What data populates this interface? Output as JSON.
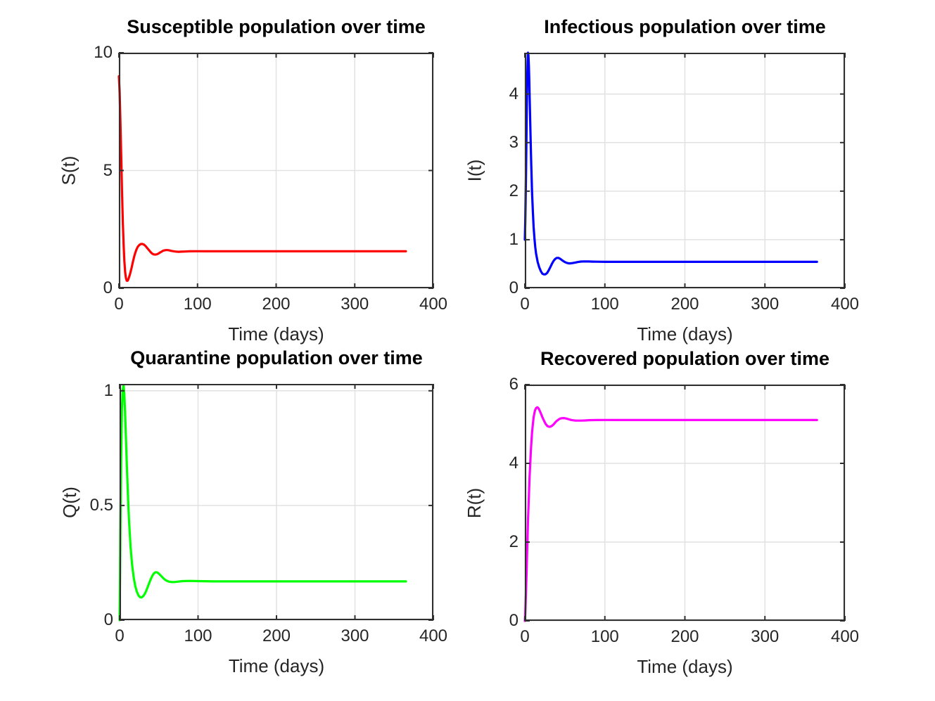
{
  "figure": {
    "background": "#ffffff"
  },
  "styles": {
    "title_color": "#000000",
    "tick_label_color": "#262626",
    "axis_color": "#2f2f2f",
    "grid_color": "#e2e2e2"
  },
  "chart_data": [
    {
      "id": "susceptible",
      "type": "line",
      "title": "Susceptible population over time",
      "xlabel": "Time (days)",
      "ylabel": "S(t)",
      "xlim": [
        0,
        400
      ],
      "ylim": [
        0,
        10
      ],
      "xticks": [
        0,
        100,
        200,
        300,
        400
      ],
      "yticks": [
        0,
        5,
        10
      ],
      "grid": true,
      "legend": "none",
      "series": [
        {
          "name": "S(t)",
          "color": "#FF0000",
          "x": [
            0,
            1,
            2,
            3,
            4,
            5,
            6,
            7,
            8,
            9,
            10,
            11,
            12,
            14,
            16,
            18,
            20,
            22,
            24,
            26,
            28,
            30,
            32,
            34,
            36,
            38,
            40,
            42,
            44,
            46,
            48,
            50,
            52,
            54,
            56,
            58,
            60,
            62,
            64,
            66,
            68,
            70,
            73,
            76,
            80,
            85,
            90,
            100,
            110,
            120,
            140,
            160,
            180,
            200,
            230,
            260,
            300,
            330,
            365
          ],
          "y": [
            9.0,
            8.3,
            7.0,
            5.5,
            4.0,
            2.8,
            1.85,
            1.15,
            0.68,
            0.42,
            0.32,
            0.32,
            0.38,
            0.58,
            0.85,
            1.15,
            1.42,
            1.62,
            1.76,
            1.84,
            1.88,
            1.88,
            1.85,
            1.79,
            1.71,
            1.63,
            1.55,
            1.48,
            1.44,
            1.43,
            1.44,
            1.47,
            1.51,
            1.55,
            1.59,
            1.61,
            1.62,
            1.62,
            1.61,
            1.59,
            1.58,
            1.57,
            1.555,
            1.55,
            1.555,
            1.56,
            1.57,
            1.572,
            1.57,
            1.57,
            1.57,
            1.57,
            1.57,
            1.57,
            1.57,
            1.57,
            1.57,
            1.57,
            1.57
          ]
        }
      ]
    },
    {
      "id": "infectious",
      "type": "line",
      "title": "Infectious population over time",
      "xlabel": "Time (days)",
      "ylabel": "I(t)",
      "xlim": [
        0,
        400
      ],
      "ylim": [
        0,
        4.85
      ],
      "xticks": [
        0,
        100,
        200,
        300,
        400
      ],
      "yticks": [
        0,
        1,
        2,
        3,
        4
      ],
      "grid": true,
      "legend": "none",
      "series": [
        {
          "name": "I(t)",
          "color": "#0000FF",
          "x": [
            0,
            0.5,
            1,
            1.5,
            2,
            2.5,
            3,
            3.5,
            4,
            4.5,
            5,
            5.5,
            6,
            7,
            8,
            9,
            10,
            11,
            12,
            13,
            14,
            16,
            18,
            20,
            22,
            24,
            26,
            28,
            30,
            32,
            34,
            36,
            38,
            40,
            42,
            44,
            46,
            48,
            50,
            52,
            54,
            56,
            58,
            60,
            63,
            66,
            70,
            75,
            80,
            85,
            90,
            100,
            120,
            150,
            200,
            250,
            300,
            365
          ],
          "y": [
            1.0,
            1.35,
            1.8,
            2.4,
            3.1,
            3.75,
            4.3,
            4.68,
            4.85,
            4.8,
            4.6,
            4.3,
            3.95,
            3.2,
            2.55,
            2.0,
            1.58,
            1.26,
            1.02,
            0.85,
            0.72,
            0.545,
            0.43,
            0.35,
            0.3,
            0.285,
            0.29,
            0.32,
            0.375,
            0.44,
            0.51,
            0.565,
            0.605,
            0.625,
            0.625,
            0.61,
            0.585,
            0.56,
            0.54,
            0.525,
            0.515,
            0.512,
            0.515,
            0.52,
            0.53,
            0.54,
            0.55,
            0.553,
            0.552,
            0.549,
            0.547,
            0.545,
            0.545,
            0.545,
            0.545,
            0.545,
            0.545,
            0.545
          ]
        }
      ]
    },
    {
      "id": "quarantine",
      "type": "line",
      "title": "Quarantine population over time",
      "xlabel": "Time (days)",
      "ylabel": "Q(t)",
      "xlim": [
        0,
        400
      ],
      "ylim": [
        0,
        1.03
      ],
      "xticks": [
        0,
        100,
        200,
        300,
        400
      ],
      "yticks": [
        0,
        0.5,
        1
      ],
      "grid": true,
      "legend": "none",
      "series": [
        {
          "name": "Q(t)",
          "color": "#00FF00",
          "x": [
            0,
            0.5,
            1,
            1.5,
            2,
            2.5,
            3,
            4,
            5,
            6,
            7,
            8,
            9,
            10,
            11,
            12,
            14,
            16,
            18,
            20,
            22,
            24,
            26,
            28,
            30,
            32,
            34,
            36,
            38,
            40,
            42,
            44,
            46,
            48,
            50,
            52,
            54,
            56,
            58,
            60,
            63,
            66,
            70,
            75,
            80,
            90,
            100,
            120,
            150,
            200,
            250,
            300,
            365
          ],
          "y": [
            0,
            0.18,
            0.38,
            0.57,
            0.72,
            0.84,
            0.92,
            1.005,
            1.025,
            0.985,
            0.905,
            0.805,
            0.7,
            0.6,
            0.51,
            0.435,
            0.32,
            0.24,
            0.185,
            0.148,
            0.124,
            0.108,
            0.1,
            0.099,
            0.104,
            0.114,
            0.128,
            0.146,
            0.164,
            0.181,
            0.195,
            0.205,
            0.209,
            0.208,
            0.203,
            0.196,
            0.189,
            0.182,
            0.176,
            0.172,
            0.168,
            0.166,
            0.166,
            0.168,
            0.17,
            0.171,
            0.17,
            0.169,
            0.169,
            0.169,
            0.169,
            0.169,
            0.169
          ]
        }
      ]
    },
    {
      "id": "recovered",
      "type": "line",
      "title": "Recovered population over time",
      "xlabel": "Time (days)",
      "ylabel": "R(t)",
      "xlim": [
        0,
        400
      ],
      "ylim": [
        0,
        6
      ],
      "xticks": [
        0,
        100,
        200,
        300,
        400
      ],
      "yticks": [
        0,
        2,
        4,
        6
      ],
      "grid": true,
      "legend": "none",
      "series": [
        {
          "name": "R(t)",
          "color": "#FF00FF",
          "x": [
            0,
            0.5,
            1,
            1.5,
            2,
            3,
            4,
            5,
            6,
            7,
            8,
            9,
            10,
            11,
            12,
            13,
            14,
            15,
            16,
            17,
            18,
            20,
            22,
            24,
            26,
            28,
            30,
            32,
            34,
            36,
            38,
            40,
            42,
            44,
            46,
            48,
            50,
            52,
            54,
            56,
            58,
            60,
            63,
            66,
            70,
            75,
            80,
            90,
            100,
            120,
            150,
            200,
            250,
            300,
            365
          ],
          "y": [
            0,
            0.18,
            0.45,
            0.78,
            1.12,
            1.85,
            2.55,
            3.15,
            3.68,
            4.12,
            4.48,
            4.77,
            5.0,
            5.17,
            5.29,
            5.36,
            5.4,
            5.42,
            5.42,
            5.4,
            5.36,
            5.27,
            5.17,
            5.08,
            5.0,
            4.95,
            4.93,
            4.93,
            4.955,
            4.99,
            5.04,
            5.08,
            5.11,
            5.135,
            5.147,
            5.15,
            5.147,
            5.138,
            5.125,
            5.112,
            5.102,
            5.094,
            5.088,
            5.085,
            5.086,
            5.09,
            5.096,
            5.1,
            5.102,
            5.1,
            5.1,
            5.1,
            5.1,
            5.1,
            5.1
          ]
        }
      ]
    }
  ]
}
